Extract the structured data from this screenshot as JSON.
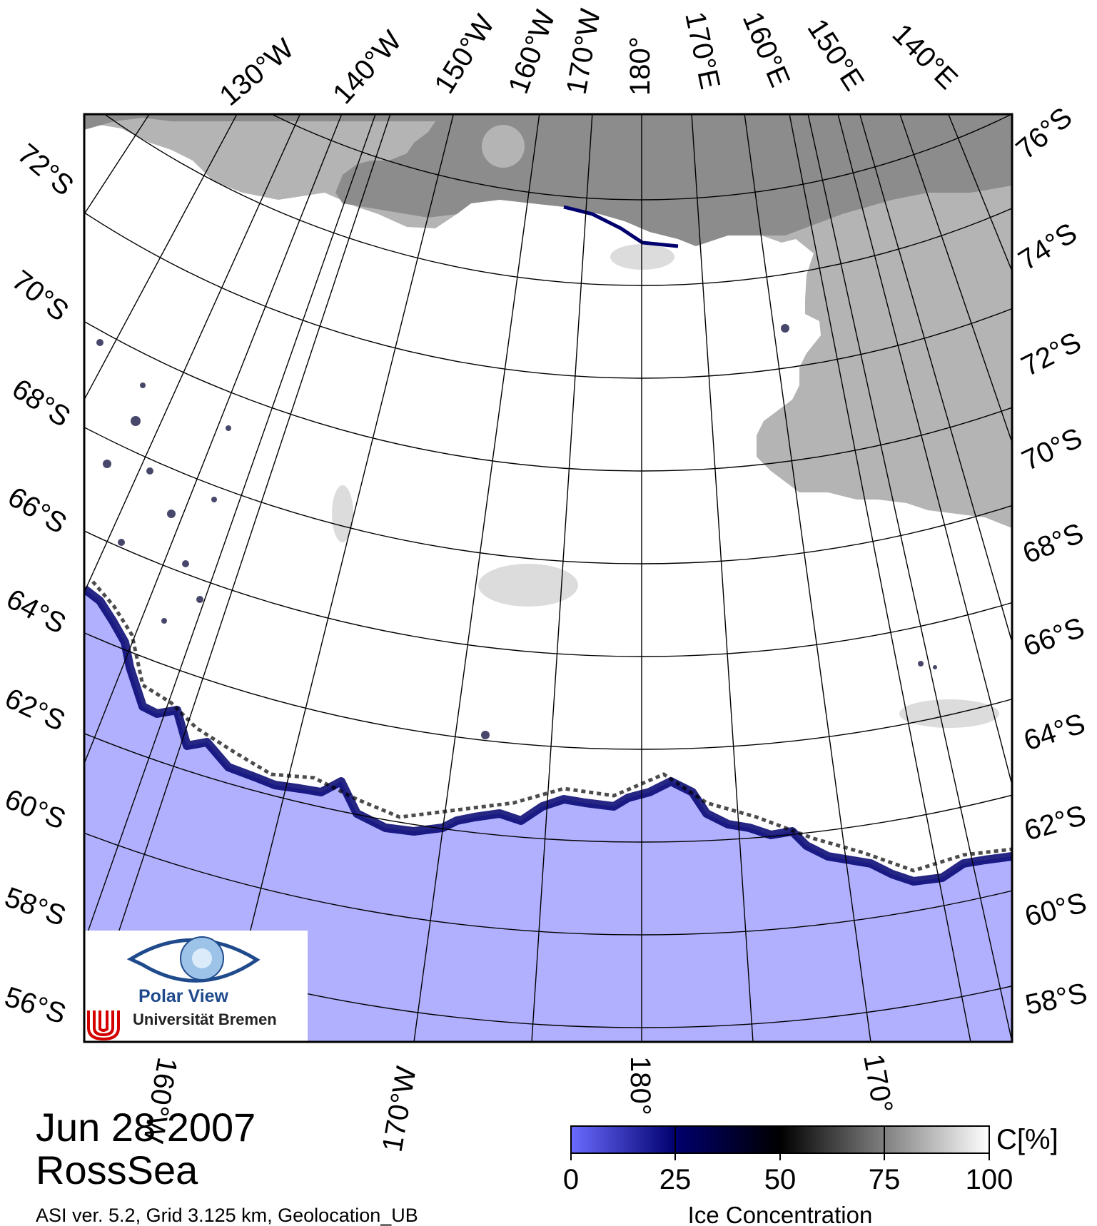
{
  "title": {
    "date": "Jun 28 2007",
    "region": "RossSea",
    "footnote": "ASI ver. 5.2,  Grid 3.125 km, Geolocation_UB"
  },
  "logo": {
    "title": "Polar View",
    "institution": "Universität Bremen"
  },
  "colorbar": {
    "label": "Ice Concentration",
    "unit": "C[%]",
    "ticks": [
      "0",
      "25",
      "50",
      "75",
      "100"
    ],
    "colors": [
      "#6b6bff",
      "#00006e",
      "#000000",
      "#808080",
      "#ffffff"
    ]
  },
  "map": {
    "top_labels": [
      "130°W",
      "140°W",
      "150°W",
      "160°W",
      "170°W",
      "180°",
      "170°E",
      "160°E",
      "150°E",
      "140°E"
    ],
    "left_labels": [
      "72°S",
      "70°S",
      "68°S",
      "66°S",
      "64°S",
      "62°S",
      "60°S",
      "58°S",
      "56°S"
    ],
    "right_labels": [
      "76°S",
      "74°S",
      "72°S",
      "70°S",
      "68°S",
      "66°S",
      "64°S",
      "62°S",
      "60°S",
      "58°S"
    ],
    "bottom_labels": [
      "160°W",
      "170°W",
      "180°",
      "170°"
    ],
    "colors": {
      "land": "#8c8c8c",
      "ice_shelf": "#b4b4b4",
      "sea_ice": "#ffffff",
      "open_water": "#b0b0ff",
      "grid": "#000000"
    }
  }
}
